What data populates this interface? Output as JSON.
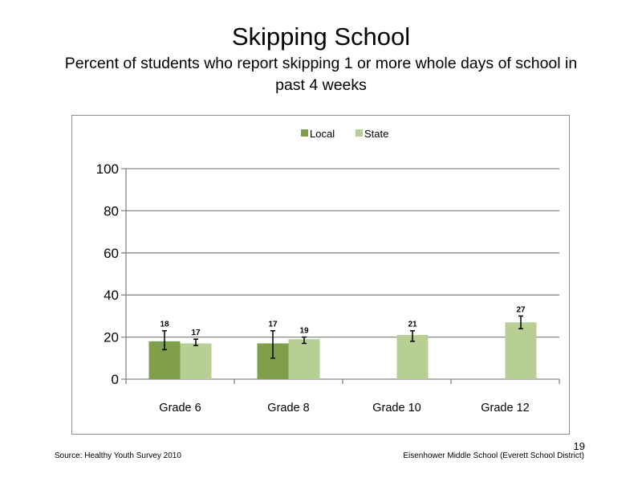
{
  "slide": {
    "title": "Skipping School",
    "subtitle": "Percent of students who report skipping 1 or more whole days of school in past 4 weeks",
    "source": "Source: Healthy Youth Survey 2010",
    "school": "Eisenhower Middle  School (Everett School District)",
    "page_number": "19"
  },
  "chart_data": {
    "type": "bar",
    "categories": [
      "Grade 6",
      "Grade 8",
      "Grade 10",
      "Grade 12"
    ],
    "series": [
      {
        "name": "Local",
        "color": "#7f9f4a",
        "values": [
          18,
          17,
          null,
          null
        ],
        "labels": [
          "18",
          "17",
          "",
          ""
        ],
        "error_low": [
          14,
          10,
          null,
          null
        ],
        "error_high": [
          23,
          23,
          null,
          null
        ]
      },
      {
        "name": "State",
        "color": "#b7cf94",
        "values": [
          17,
          19,
          21,
          27
        ],
        "labels": [
          "17",
          "19",
          "21",
          "27"
        ],
        "error_low": [
          16,
          17,
          18,
          24
        ],
        "error_high": [
          19,
          20,
          23,
          30
        ]
      }
    ],
    "ylim": [
      0,
      100
    ],
    "yticks": [
      "0",
      "20",
      "40",
      "60",
      "80",
      "100"
    ],
    "grid": true,
    "legend_position": "top"
  }
}
